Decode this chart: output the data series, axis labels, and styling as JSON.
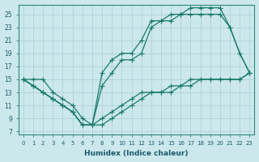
{
  "xlabel": "Humidex (Indice chaleur)",
  "ylabel": "",
  "bg_color": "#cce8ec",
  "grid_color": "#aacdd4",
  "line_color": "#1a7a6a",
  "xlim": [
    -0.5,
    23.5
  ],
  "ylim": [
    6.5,
    26.5
  ],
  "xticks": [
    0,
    1,
    2,
    3,
    4,
    5,
    6,
    7,
    8,
    9,
    10,
    11,
    12,
    13,
    14,
    15,
    16,
    17,
    18,
    19,
    20,
    21,
    22,
    23
  ],
  "yticks": [
    7,
    9,
    11,
    13,
    15,
    17,
    19,
    21,
    23,
    25
  ],
  "line1_x": [
    0,
    1,
    2,
    3,
    4,
    5,
    6,
    7,
    8,
    9,
    10,
    11,
    12,
    13,
    14,
    15,
    16,
    17,
    18,
    19,
    20,
    21,
    22,
    23
  ],
  "line1_y": [
    15,
    14,
    13,
    12,
    11,
    10,
    8,
    8,
    16,
    18,
    19,
    19,
    21,
    24,
    24,
    25,
    25,
    26,
    26,
    26,
    26,
    23,
    19,
    16
  ],
  "line2_x": [
    0,
    1,
    2,
    3,
    4,
    5,
    6,
    7,
    8,
    9,
    10,
    11,
    12,
    13,
    14,
    15,
    16,
    17,
    18,
    19,
    20,
    21,
    22,
    23
  ],
  "line2_y": [
    15,
    14,
    13,
    12,
    11,
    10,
    8,
    8,
    14,
    16,
    18,
    18,
    19,
    23,
    24,
    24,
    25,
    25,
    25,
    25,
    25,
    23,
    19,
    16
  ],
  "line3_x": [
    0,
    1,
    2,
    3,
    4,
    5,
    6,
    7,
    8,
    9,
    10,
    11,
    12,
    13,
    14,
    15,
    16,
    17,
    18,
    19,
    20,
    21,
    22,
    23
  ],
  "line3_y": [
    15,
    15,
    15,
    13,
    12,
    11,
    9,
    8,
    9,
    10,
    11,
    12,
    13,
    13,
    13,
    14,
    14,
    15,
    15,
    15,
    15,
    15,
    15,
    16
  ],
  "line4_x": [
    0,
    1,
    2,
    3,
    4,
    5,
    6,
    7,
    8,
    9,
    10,
    11,
    12,
    13,
    14,
    15,
    16,
    17,
    18,
    19,
    20,
    21,
    22,
    23
  ],
  "line4_y": [
    15,
    14,
    13,
    12,
    11,
    10,
    8,
    8,
    8,
    9,
    10,
    11,
    12,
    13,
    13,
    13,
    14,
    14,
    15,
    15,
    15,
    15,
    15,
    16
  ]
}
